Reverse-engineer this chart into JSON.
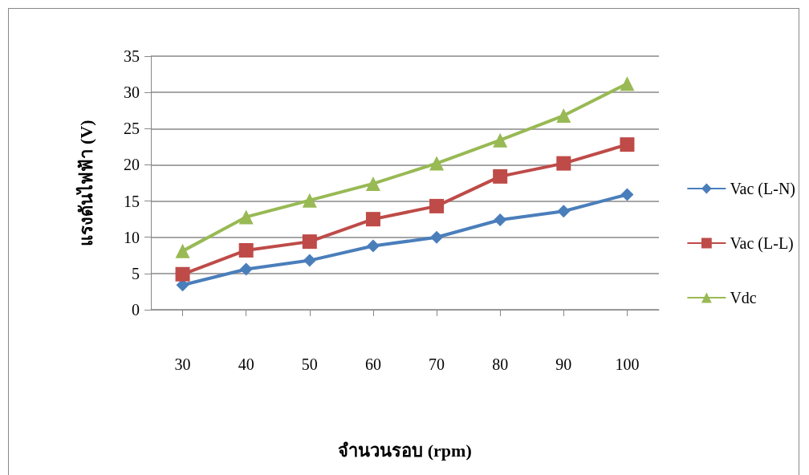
{
  "chart_data": {
    "type": "line",
    "xlabel": "จำนวนรอบ (rpm)",
    "ylabel": "แรงดันไฟฟ้า (V)",
    "categories": [
      "30",
      "40",
      "50",
      "60",
      "70",
      "80",
      "90",
      "100"
    ],
    "series": [
      {
        "name": "Vac (L-N)",
        "color": "#4a7ebb",
        "marker": "diamond",
        "values": [
          3.4,
          5.6,
          6.8,
          8.8,
          10.0,
          12.4,
          13.6,
          15.9
        ]
      },
      {
        "name": "Vac (L-L)",
        "color": "#be4b48",
        "marker": "square",
        "values": [
          4.9,
          8.2,
          9.4,
          12.5,
          14.3,
          18.4,
          20.2,
          22.8
        ]
      },
      {
        "name": "Vdc",
        "color": "#98b954",
        "marker": "triangle",
        "values": [
          8.1,
          12.8,
          15.1,
          17.4,
          20.2,
          23.4,
          26.8,
          31.2
        ]
      }
    ],
    "ylim": [
      0,
      35
    ],
    "yticks": [
      0,
      5,
      10,
      15,
      20,
      25,
      30,
      35
    ],
    "grid": "y",
    "legend": "right",
    "line_style": "solid"
  }
}
